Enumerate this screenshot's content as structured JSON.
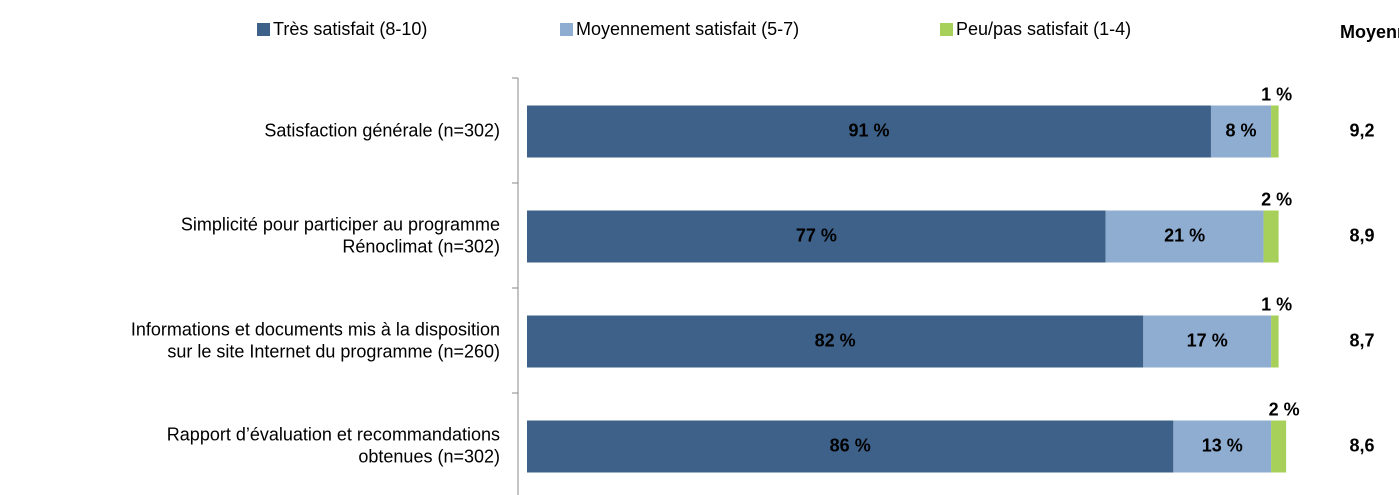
{
  "chart_data": {
    "type": "stacked-bar-horizontal",
    "categories": [
      "Satisfaction générale (n=302)",
      "Simplicité pour participer au programme\nRénoclimat (n=302)",
      "Informations et documents mis à la disposition\nsur le site Internet du programme (n=260)",
      "Rapport d’évaluation et recommandations\nobtenues (n=302)"
    ],
    "series": [
      {
        "name": "Très satisfait (8-10)",
        "color": "#3e6189",
        "values": [
          91,
          77,
          82,
          86
        ],
        "value_labels": [
          "91 %",
          "77 %",
          "82 %",
          "86 %"
        ]
      },
      {
        "name": "Moyennement satisfait (5-7)",
        "color": "#8eadd1",
        "values": [
          8,
          21,
          17,
          13
        ],
        "value_labels": [
          "8 %",
          "21 %",
          "17 %",
          "13 %"
        ]
      },
      {
        "name": "Peu/pas satisfait (1-4)",
        "color": "#a6d05a",
        "values": [
          1,
          2,
          1,
          2
        ],
        "value_labels": [
          "1 %",
          "2 %",
          "1 %",
          "2 %"
        ]
      }
    ],
    "xlim": [
      0,
      100
    ],
    "averages": {
      "title": "Moyenne",
      "values": [
        9.2,
        8.9,
        8.7,
        8.6
      ],
      "value_labels": [
        "9,2",
        "8,9",
        "8,7",
        "8,6"
      ]
    }
  }
}
